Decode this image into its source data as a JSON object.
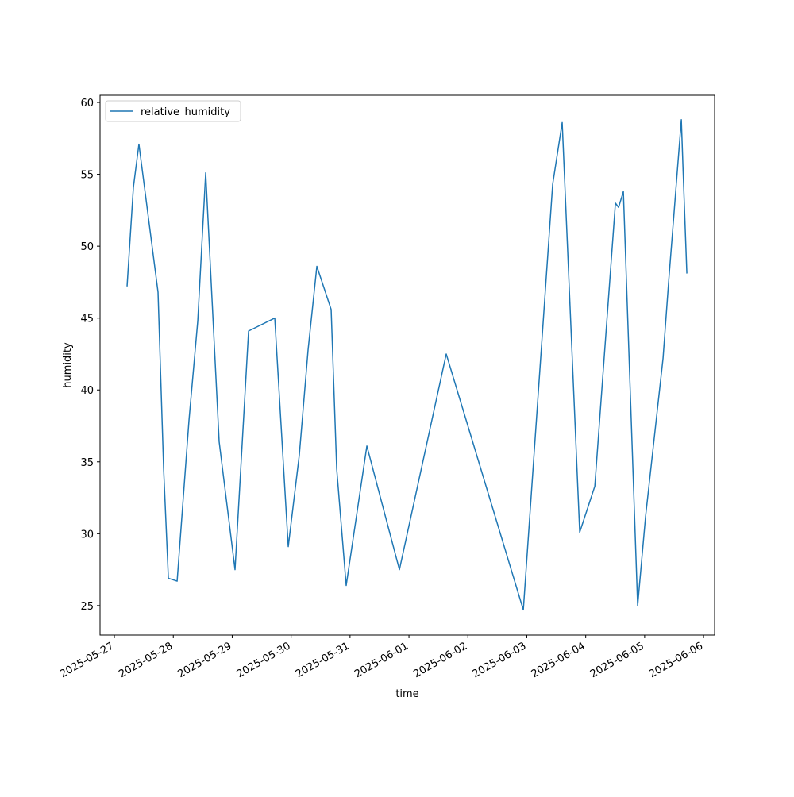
{
  "chart_data": {
    "type": "line",
    "xlabel": "time",
    "ylabel": "humidity",
    "x": [
      "2025-05-27T05:10",
      "2025-05-27T07:45",
      "2025-05-27T10:00",
      "2025-05-27T17:47",
      "2025-05-27T20:04",
      "2025-05-27T22:00",
      "2025-05-28T01:34",
      "2025-05-28T06:24",
      "2025-05-28T09:58",
      "2025-05-28T13:12",
      "2025-05-28T18:41",
      "2025-05-29T01:09",
      "2025-05-29T06:40",
      "2025-05-29T17:20",
      "2025-05-29T22:50",
      "2025-05-30T03:21",
      "2025-05-30T06:55",
      "2025-05-30T10:29",
      "2025-05-30T16:18",
      "2025-05-30T18:34",
      "2025-05-30T22:26",
      "2025-05-31T06:51",
      "2025-05-31T20:07",
      "2025-06-01T15:11",
      "2025-06-02T22:35",
      "2025-06-03T10:32",
      "2025-06-03T14:25",
      "2025-06-03T21:33",
      "2025-06-04T03:42",
      "2025-06-04T12:06",
      "2025-06-04T13:23",
      "2025-06-04T15:20",
      "2025-06-04T21:09",
      "2025-06-05T00:23",
      "2025-06-05T07:30",
      "2025-06-05T09:46",
      "2025-06-05T14:57",
      "2025-06-05T15:36",
      "2025-06-05T17:12"
    ],
    "series": [
      {
        "name": "relative_humidity",
        "color": "#1f77b4",
        "values": [
          47.2,
          54.1,
          57.1,
          46.8,
          34.5,
          26.9,
          26.7,
          37.9,
          44.8,
          55.1,
          36.4,
          27.5,
          44.1,
          45.0,
          29.1,
          35.5,
          42.8,
          48.6,
          45.6,
          34.5,
          26.4,
          36.1,
          27.5,
          42.5,
          24.7,
          54.3,
          58.6,
          30.1,
          33.3,
          53.0,
          52.7,
          53.8,
          25.0,
          31.2,
          42.2,
          47.5,
          58.8,
          55.6,
          48.1
        ]
      }
    ],
    "xlim": [
      "2025-05-26T18:10",
      "2025-06-06T04:30"
    ],
    "xticks": [
      "2025-05-27",
      "2025-05-28",
      "2025-05-29",
      "2025-05-30",
      "2025-05-31",
      "2025-06-01",
      "2025-06-02",
      "2025-06-03",
      "2025-06-04",
      "2025-06-05",
      "2025-06-06"
    ],
    "ylim": [
      22.95,
      60.5
    ],
    "yticks": [
      25,
      30,
      35,
      40,
      45,
      50,
      55,
      60
    ],
    "legend": "upper left"
  }
}
